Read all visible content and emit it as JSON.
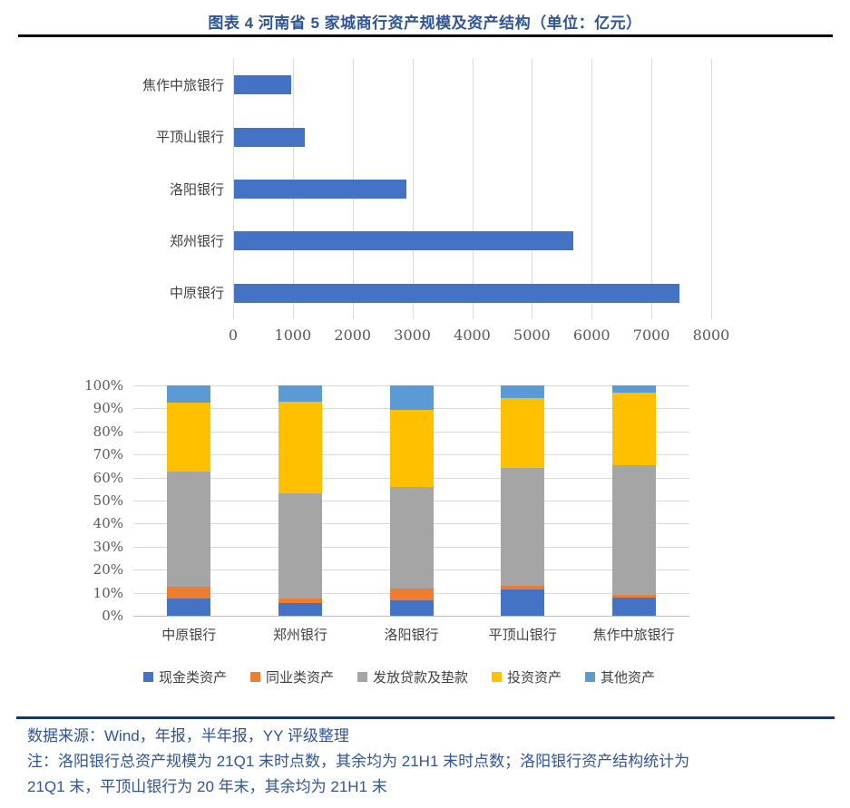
{
  "title": "图表 4 河南省 5 家城商行资产规模及资产结构（单位：亿元）",
  "colors": {
    "title_text": "#2F5597",
    "footer_text": "#2F5597",
    "footer_rule": "#17375E",
    "title_rule": "#000000",
    "gridline": "#D9D9D9",
    "axis_text": "#595959",
    "category_text": "#404040"
  },
  "chart_data": [
    {
      "type": "bar",
      "orientation": "horizontal",
      "title": "河南省5家城商行资产规模",
      "unit": "亿元",
      "categories_top_to_bottom": [
        "焦作中旅银行",
        "平顶山银行",
        "洛阳银行",
        "郑州银行",
        "中原银行"
      ],
      "values": [
        950,
        1180,
        2890,
        5680,
        7460
      ],
      "xlim": [
        0,
        8000
      ],
      "x_ticks": [
        0,
        1000,
        2000,
        3000,
        4000,
        5000,
        6000,
        7000,
        8000
      ],
      "bar_color": "#4472C4",
      "grid": true,
      "legend_position": "none"
    },
    {
      "type": "bar",
      "stacked": true,
      "percent": true,
      "title": "河南省5家城商行资产结构",
      "categories": [
        "中原银行",
        "郑州银行",
        "洛阳银行",
        "平顶山银行",
        "焦作中旅银行"
      ],
      "series": [
        {
          "name": "现金类资产",
          "color": "#4472C4",
          "values": [
            7.5,
            5.5,
            6.5,
            11.5,
            8
          ]
        },
        {
          "name": "同业类资产",
          "color": "#ED7D31",
          "values": [
            5,
            2,
            5.5,
            1.5,
            1
          ]
        },
        {
          "name": "发放贷款及垫款",
          "color": "#A5A5A5",
          "values": [
            50,
            45.5,
            44,
            51,
            56.5
          ]
        },
        {
          "name": "投资资产",
          "color": "#FFC000",
          "values": [
            30,
            40,
            33.5,
            30.5,
            31.5
          ]
        },
        {
          "name": "其他资产",
          "color": "#5B9BD5",
          "values": [
            7.5,
            7,
            10.5,
            5.5,
            3
          ]
        }
      ],
      "ylim": [
        0,
        100
      ],
      "y_tick_step": 10,
      "y_tick_suffix": "%",
      "grid": true,
      "legend_position": "bottom"
    }
  ],
  "footer": {
    "source": "数据来源：Wind，年报，半年报，YY 评级整理",
    "note_line1": "注：洛阳银行总资产规模为 21Q1 末时点数，其余均为 21H1 末时点数；洛阳银行资产结构统计为",
    "note_line2": "21Q1 末，平顶山银行为 20 年末，其余均为 21H1 末"
  }
}
